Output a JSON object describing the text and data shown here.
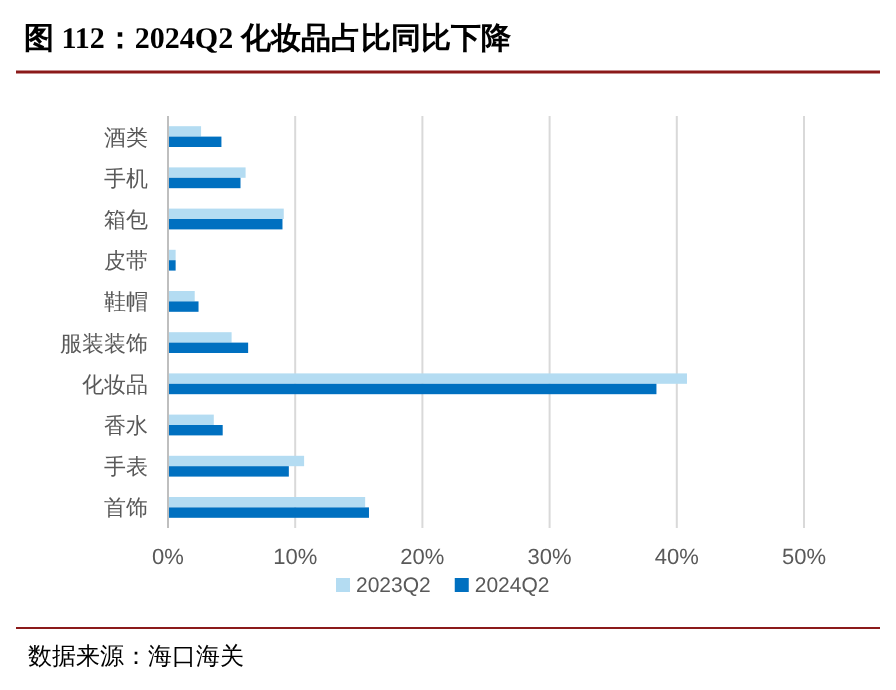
{
  "chart_data": {
    "type": "bar",
    "orientation": "horizontal",
    "title": "图 112：2024Q2 化妆品占比同比下降",
    "categories": [
      "酒类",
      "手机",
      "箱包",
      "皮带",
      "鞋帽",
      "服装装饰",
      "化妆品",
      "香水",
      "手表",
      "首饰"
    ],
    "series": [
      {
        "name": "2023Q2",
        "color": "#b4dcf2",
        "values": [
          2.6,
          6.1,
          9.1,
          0.6,
          2.1,
          5.0,
          40.8,
          3.6,
          10.7,
          15.5
        ]
      },
      {
        "name": "2024Q2",
        "color": "#0070c0",
        "values": [
          4.2,
          5.7,
          9.0,
          0.6,
          2.4,
          6.3,
          38.4,
          4.3,
          9.5,
          15.8
        ]
      }
    ],
    "xlim": [
      0,
      50
    ],
    "xticks": [
      {
        "value": 0,
        "label": "0%"
      },
      {
        "value": 10,
        "label": "10%"
      },
      {
        "value": 20,
        "label": "20%"
      },
      {
        "value": 30,
        "label": "30%"
      },
      {
        "value": 40,
        "label": "40%"
      },
      {
        "value": 50,
        "label": "50%"
      }
    ],
    "grid": "x",
    "legend": "bottom",
    "annotations": [
      "数据来源：海口海关"
    ]
  }
}
